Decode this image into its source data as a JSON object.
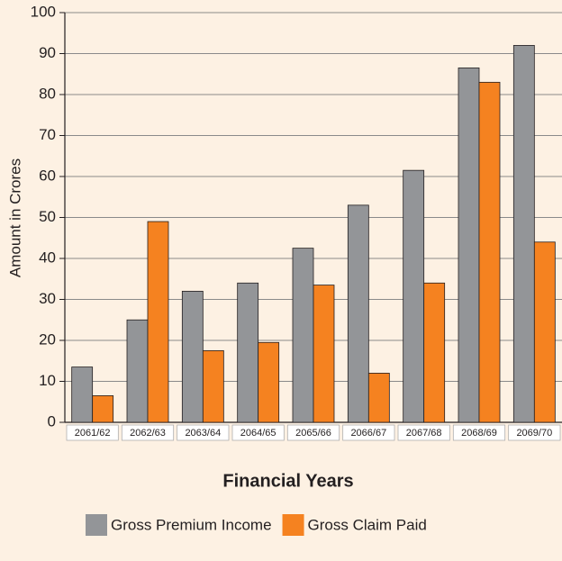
{
  "chart_data": {
    "type": "bar",
    "xlabel": "Financial Years",
    "ylabel": "Amount in Crores",
    "categories": [
      "2061/62",
      "2062/63",
      "2063/64",
      "2064/65",
      "2065/66",
      "2066/67",
      "2067/68",
      "2068/69",
      "2069/70"
    ],
    "series": [
      {
        "name": "Gross Premium Income",
        "color": "#939598",
        "values": [
          13.5,
          25,
          32,
          34,
          42.5,
          53,
          61.5,
          86.5,
          92
        ]
      },
      {
        "name": "Gross Claim Paid",
        "color": "#f58220",
        "values": [
          6.5,
          49,
          17.5,
          19.5,
          33.5,
          12,
          34,
          83,
          44
        ]
      }
    ],
    "ylim": [
      0,
      100
    ],
    "yticks": [
      0,
      10,
      20,
      30,
      40,
      50,
      60,
      70,
      80,
      90,
      100
    ],
    "grid": true,
    "legend": "bottom"
  }
}
